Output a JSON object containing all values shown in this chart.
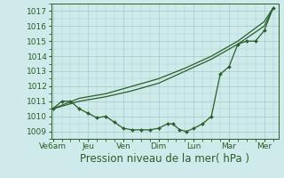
{
  "background_color": "#ceeaea",
  "grid_color": "#aacece",
  "line_color": "#2a5e2a",
  "marker_color": "#2a5e2a",
  "title": "Pression niveau de la mer( hPa )",
  "ylim": [
    1008.5,
    1017.5
  ],
  "yticks": [
    1009,
    1010,
    1011,
    1012,
    1013,
    1014,
    1015,
    1016,
    1017
  ],
  "xtick_labels": [
    "Ve6am",
    "Jeu",
    "Ven",
    "Dim",
    "Lun",
    "Mar",
    "Mer"
  ],
  "xtick_positions": [
    0,
    2,
    4,
    6,
    8,
    10,
    12
  ],
  "xlim": [
    -0.1,
    12.8
  ],
  "series1_x": [
    0,
    0.5,
    1.0,
    1.5,
    2.0,
    2.5,
    3.0,
    3.5,
    4.0,
    4.5,
    5.0,
    5.5,
    6.0,
    6.5,
    6.8,
    7.2,
    7.6,
    8.0,
    8.5,
    9.0,
    9.5,
    10.0,
    10.5,
    11.0,
    11.5,
    12.0,
    12.5
  ],
  "series1_y": [
    1010.5,
    1011.0,
    1011.0,
    1010.5,
    1010.2,
    1009.9,
    1010.0,
    1009.6,
    1009.2,
    1009.1,
    1009.1,
    1009.1,
    1009.2,
    1009.5,
    1009.5,
    1009.1,
    1009.0,
    1009.2,
    1009.5,
    1010.0,
    1012.8,
    1013.3,
    1014.8,
    1015.0,
    1015.0,
    1015.7,
    1017.2
  ],
  "series2_x": [
    0,
    1.5,
    3.0,
    4.5,
    6.0,
    7.5,
    9.0,
    10.5,
    12.0,
    12.5
  ],
  "series2_y": [
    1010.5,
    1011.2,
    1011.5,
    1012.0,
    1012.5,
    1013.2,
    1014.0,
    1015.0,
    1016.3,
    1017.2
  ],
  "series3_x": [
    0,
    1.5,
    3.0,
    4.5,
    6.0,
    7.5,
    9.0,
    10.5,
    12.0,
    12.5
  ],
  "series3_y": [
    1010.5,
    1011.0,
    1011.3,
    1011.7,
    1012.2,
    1013.0,
    1013.8,
    1014.8,
    1016.0,
    1017.2
  ],
  "title_fontsize": 8.5,
  "tick_fontsize": 6.5,
  "minor_grid_per_major": 2
}
